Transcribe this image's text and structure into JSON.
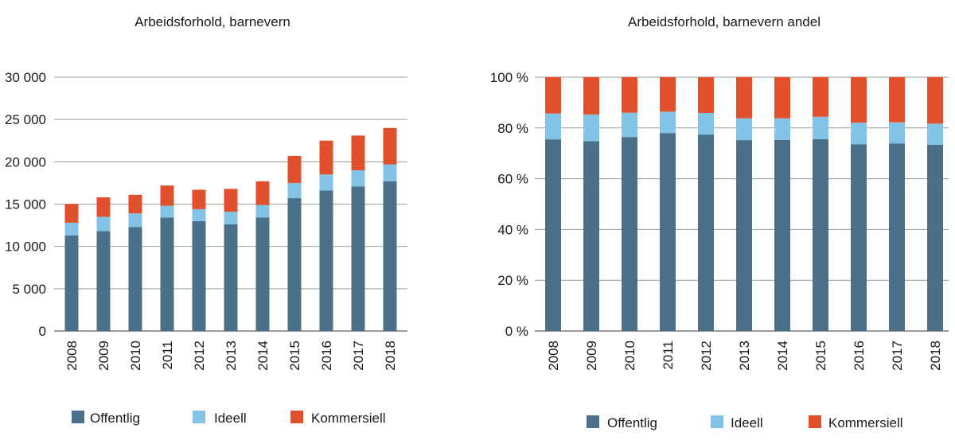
{
  "colors": {
    "offentlig": "#4a7189",
    "ideell": "#84c3e8",
    "kommersiell": "#e0502a"
  },
  "chart_data": [
    {
      "type": "bar",
      "stacked": true,
      "title": "Arbeidsforhold, barnevern",
      "categories": [
        "2008",
        "2009",
        "2010",
        "2011",
        "2012",
        "2013",
        "2014",
        "2015",
        "2016",
        "2017",
        "2018"
      ],
      "series": [
        {
          "name": "Offentlig",
          "values": [
            11300,
            11800,
            12300,
            13400,
            13000,
            12600,
            13400,
            15700,
            16600,
            17100,
            17700
          ]
        },
        {
          "name": "Ideell",
          "values": [
            1500,
            1700,
            1600,
            1400,
            1400,
            1500,
            1500,
            1800,
            1900,
            1900,
            2000
          ]
        },
        {
          "name": "Kommersiell",
          "values": [
            2200,
            2300,
            2200,
            2400,
            2300,
            2700,
            2800,
            3200,
            4000,
            4100,
            4300
          ]
        }
      ],
      "ylim": [
        0,
        30000
      ],
      "yticks": [
        0,
        5000,
        10000,
        15000,
        20000,
        25000,
        30000
      ],
      "ytick_labels": [
        "0",
        "5 000",
        "10 000",
        "15 000",
        "20 000",
        "25 000",
        "30 000"
      ],
      "xlabel": "",
      "ylabel": "",
      "grid": true,
      "legend": "bottom"
    },
    {
      "type": "bar",
      "stacked": true,
      "title": "Arbeidsforhold, barnevern andel",
      "categories": [
        "2008",
        "2009",
        "2010",
        "2011",
        "2012",
        "2013",
        "2014",
        "2015",
        "2016",
        "2017",
        "2018"
      ],
      "series": [
        {
          "name": "Offentlig",
          "values": [
            75.5,
            74.8,
            76.4,
            78.0,
            77.4,
            75.2,
            75.3,
            75.6,
            73.6,
            73.9,
            73.4
          ]
        },
        {
          "name": "Ideell",
          "values": [
            10.2,
            10.5,
            9.6,
            8.4,
            8.5,
            8.6,
            8.5,
            8.8,
            8.5,
            8.3,
            8.3
          ]
        },
        {
          "name": "Kommersiell",
          "values": [
            14.3,
            14.7,
            14.0,
            13.6,
            14.1,
            16.2,
            16.2,
            15.6,
            17.9,
            17.8,
            18.3
          ]
        }
      ],
      "ylim": [
        0,
        100
      ],
      "yticks": [
        0,
        20,
        40,
        60,
        80,
        100
      ],
      "ytick_labels": [
        "0 %",
        "20 %",
        "40 %",
        "60 %",
        "80 %",
        "100 %"
      ],
      "xlabel": "",
      "ylabel": "",
      "grid": true,
      "legend": "bottom"
    }
  ]
}
